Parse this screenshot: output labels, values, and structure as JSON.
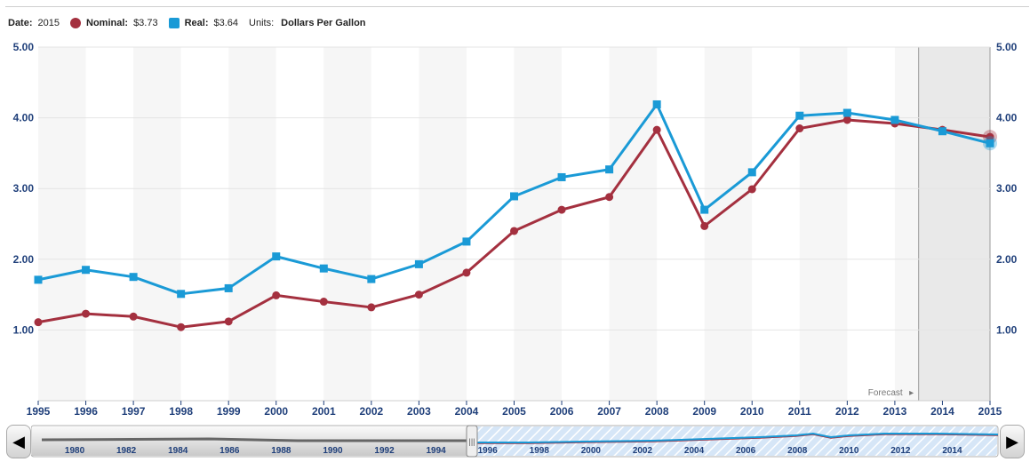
{
  "legend": {
    "date_label": "Date:",
    "date_value": "2015",
    "nominal_label": "Nominal:",
    "nominal_value": "$3.73",
    "real_label": "Real:",
    "real_value": "$3.64",
    "units_label": "Units:",
    "units_value": "Dollars Per Gallon"
  },
  "colors": {
    "nominal": "#a4303f",
    "real": "#1a9ad6",
    "axis_text": "#1f3f7a"
  },
  "icons": {
    "scroll_left": "◀",
    "scroll_right": "▶",
    "forecast_arrow": "▸",
    "handle_grip": "|||"
  },
  "chart_data": {
    "type": "line",
    "title": "",
    "xlabel": "",
    "ylabel": "Dollars Per Gallon",
    "x": [
      "1995",
      "1996",
      "1997",
      "1998",
      "1999",
      "2000",
      "2001",
      "2002",
      "2003",
      "2004",
      "2005",
      "2006",
      "2007",
      "2008",
      "2009",
      "2010",
      "2011",
      "2012",
      "2013",
      "2014",
      "2015"
    ],
    "series": [
      {
        "name": "Nominal",
        "values": [
          1.11,
          1.23,
          1.19,
          1.04,
          1.12,
          1.49,
          1.4,
          1.32,
          1.5,
          1.81,
          2.4,
          2.7,
          2.88,
          3.83,
          2.47,
          2.99,
          3.85,
          3.97,
          3.92,
          3.83,
          3.73
        ]
      },
      {
        "name": "Real",
        "values": [
          1.71,
          1.85,
          1.75,
          1.51,
          1.59,
          2.04,
          1.87,
          1.72,
          1.93,
          2.25,
          2.89,
          3.16,
          3.27,
          4.19,
          2.7,
          3.23,
          4.03,
          4.07,
          3.97,
          3.81,
          3.64
        ]
      }
    ],
    "ylim": [
      0,
      5
    ],
    "yticks": [
      "1.00",
      "2.00",
      "3.00",
      "4.00",
      "5.00"
    ],
    "forecast_label": "Forecast",
    "forecast_from": "2013.5",
    "scroller_ticks": [
      "1980",
      "1982",
      "1984",
      "1986",
      "1988",
      "1990",
      "1992",
      "1994",
      "1996",
      "1998",
      "2000",
      "2002",
      "2004",
      "2006",
      "2008",
      "2010",
      "2012",
      "2014"
    ]
  }
}
